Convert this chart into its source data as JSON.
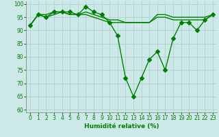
{
  "x": [
    0,
    1,
    2,
    3,
    4,
    5,
    6,
    7,
    8,
    9,
    10,
    11,
    12,
    13,
    14,
    15,
    16,
    17,
    18,
    19,
    20,
    21,
    22,
    23
  ],
  "y_main": [
    92,
    96,
    95,
    97,
    97,
    97,
    96,
    99,
    97,
    96,
    93,
    88,
    72,
    65,
    72,
    79,
    82,
    75,
    87,
    93,
    93,
    90,
    94,
    96
  ],
  "y_smooth": [
    92,
    96,
    96,
    97,
    97,
    96,
    96,
    97,
    96,
    95,
    94,
    94,
    93,
    93,
    93,
    93,
    96,
    96,
    95,
    95,
    95,
    95,
    95,
    96
  ],
  "y_smooth2": [
    92,
    96,
    95,
    96,
    97,
    96,
    96,
    96,
    95,
    94,
    93,
    93,
    93,
    93,
    93,
    93,
    95,
    95,
    94,
    94,
    94,
    94,
    94,
    96
  ],
  "line_color": "#008000",
  "markersize": 3,
  "linewidth": 1.0,
  "background_color": "#cce8e8",
  "grid_color": "#aacccc",
  "xlabel": "Humidité relative (%)",
  "xlabel_color": "#008000",
  "xlabel_fontsize": 6.5,
  "tick_color": "#008000",
  "tick_fontsize": 5.5,
  "ylim": [
    59,
    101
  ],
  "yticks": [
    60,
    65,
    70,
    75,
    80,
    85,
    90,
    95,
    100
  ],
  "xlim": [
    -0.5,
    23.5
  ]
}
